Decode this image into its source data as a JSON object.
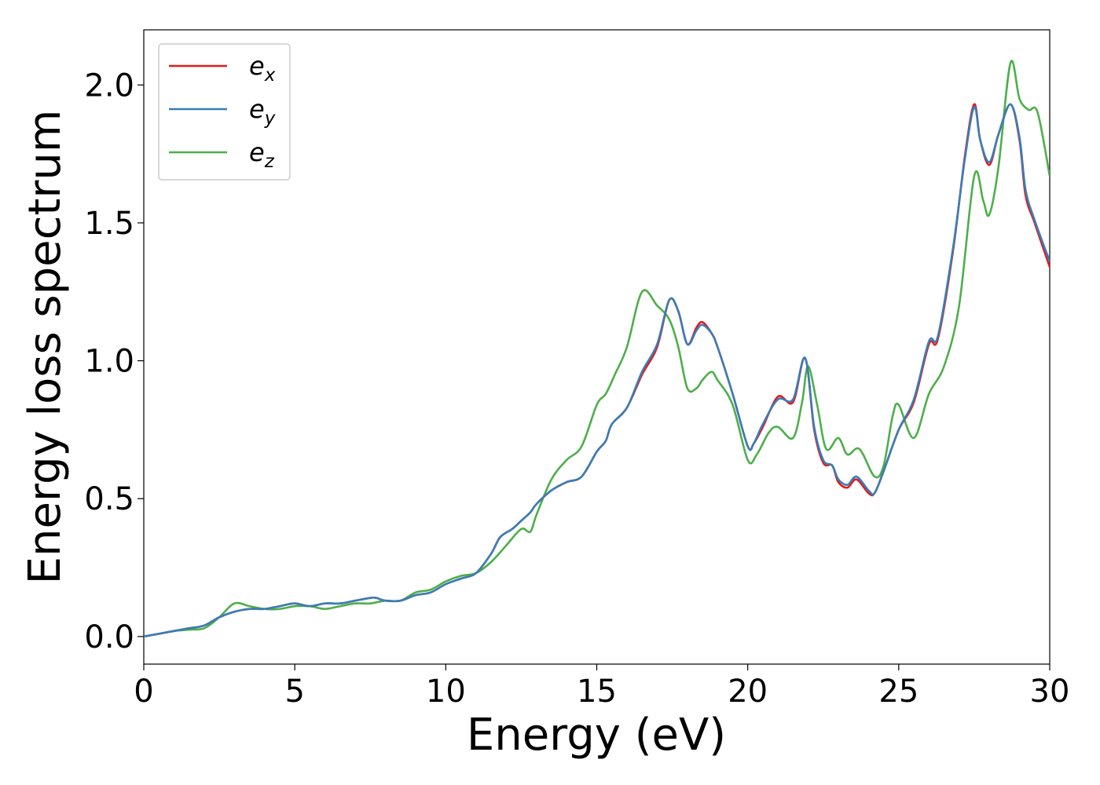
{
  "chart_data": {
    "type": "line",
    "title": "",
    "xlabel": "Energy (eV)",
    "ylabel": "Energy loss spectrum",
    "xlim": [
      0,
      30
    ],
    "ylim": [
      -0.1,
      2.2
    ],
    "xticks": [
      0,
      5,
      10,
      15,
      20,
      25,
      30
    ],
    "xtick_labels": [
      "0",
      "5",
      "10",
      "15",
      "20",
      "25",
      "30"
    ],
    "yticks": [
      0.0,
      0.5,
      1.0,
      1.5,
      2.0
    ],
    "ytick_labels": [
      "0.0",
      "0.5",
      "1.0",
      "1.5",
      "2.0"
    ],
    "grid": false,
    "legend_position": "top-left",
    "series": [
      {
        "name": "e_x",
        "label_base": "e",
        "label_sub": "x",
        "color": "#e41a1c",
        "x": [
          0,
          0.5,
          1,
          1.5,
          2,
          2.5,
          3,
          3.5,
          4,
          4.5,
          5,
          5.5,
          6,
          6.5,
          7,
          7.5,
          7.7,
          8,
          8.5,
          9,
          9.5,
          10,
          10.5,
          11,
          11.5,
          11.8,
          12.2,
          12.5,
          12.8,
          13,
          13.5,
          14,
          14.5,
          15,
          15.3,
          15.5,
          16,
          16.5,
          17,
          17.4,
          17.7,
          18,
          18.3,
          18.5,
          18.8,
          19,
          19.5,
          20,
          20.2,
          20.5,
          21,
          21.5,
          21.9,
          22.2,
          22.5,
          22.8,
          23,
          23.3,
          23.6,
          24,
          24.2,
          24.5,
          25,
          25.5,
          26,
          26.3,
          26.8,
          27.2,
          27.5,
          27.7,
          28,
          28.3,
          28.7,
          29,
          29.2,
          29.5,
          30
        ],
        "y": [
          0,
          0.01,
          0.02,
          0.03,
          0.04,
          0.07,
          0.09,
          0.1,
          0.1,
          0.11,
          0.12,
          0.11,
          0.12,
          0.12,
          0.13,
          0.14,
          0.14,
          0.13,
          0.13,
          0.15,
          0.16,
          0.19,
          0.21,
          0.23,
          0.3,
          0.36,
          0.39,
          0.42,
          0.45,
          0.48,
          0.53,
          0.56,
          0.58,
          0.67,
          0.71,
          0.77,
          0.83,
          0.95,
          1.05,
          1.22,
          1.18,
          1.06,
          1.12,
          1.14,
          1.1,
          1.05,
          0.88,
          0.69,
          0.7,
          0.76,
          0.87,
          0.85,
          1.01,
          0.75,
          0.63,
          0.62,
          0.56,
          0.54,
          0.57,
          0.52,
          0.52,
          0.6,
          0.75,
          0.85,
          1.06,
          1.08,
          1.4,
          1.75,
          1.93,
          1.8,
          1.71,
          1.82,
          1.93,
          1.8,
          1.6,
          1.5,
          1.34
        ]
      },
      {
        "name": "e_y",
        "label_base": "e",
        "label_sub": "y",
        "color": "#377eb8",
        "x": [
          0,
          0.5,
          1,
          1.5,
          2,
          2.5,
          3,
          3.5,
          4,
          4.5,
          5,
          5.5,
          6,
          6.5,
          7,
          7.5,
          7.7,
          8,
          8.5,
          9,
          9.5,
          10,
          10.5,
          11,
          11.5,
          11.8,
          12.2,
          12.5,
          12.8,
          13,
          13.5,
          14,
          14.5,
          15,
          15.3,
          15.5,
          16,
          16.5,
          17,
          17.4,
          17.7,
          18,
          18.3,
          18.5,
          18.8,
          19,
          19.5,
          20,
          20.2,
          20.5,
          21,
          21.5,
          21.9,
          22.2,
          22.5,
          22.8,
          23,
          23.3,
          23.6,
          24,
          24.2,
          24.5,
          25,
          25.5,
          26,
          26.3,
          26.8,
          27.2,
          27.5,
          27.7,
          28,
          28.3,
          28.7,
          29,
          29.2,
          29.5,
          30
        ],
        "y": [
          0,
          0.01,
          0.02,
          0.03,
          0.04,
          0.07,
          0.09,
          0.1,
          0.1,
          0.11,
          0.12,
          0.11,
          0.12,
          0.12,
          0.13,
          0.14,
          0.14,
          0.13,
          0.13,
          0.15,
          0.16,
          0.19,
          0.21,
          0.23,
          0.3,
          0.36,
          0.39,
          0.42,
          0.45,
          0.48,
          0.53,
          0.56,
          0.58,
          0.67,
          0.71,
          0.77,
          0.83,
          0.96,
          1.06,
          1.22,
          1.18,
          1.06,
          1.11,
          1.13,
          1.1,
          1.05,
          0.88,
          0.69,
          0.7,
          0.77,
          0.86,
          0.86,
          1.01,
          0.76,
          0.64,
          0.62,
          0.57,
          0.55,
          0.58,
          0.53,
          0.52,
          0.6,
          0.75,
          0.86,
          1.07,
          1.09,
          1.41,
          1.74,
          1.92,
          1.8,
          1.72,
          1.82,
          1.93,
          1.81,
          1.62,
          1.51,
          1.36
        ]
      },
      {
        "name": "e_z",
        "label_base": "e",
        "label_sub": "z",
        "color": "#4daf4a",
        "x": [
          0,
          0.5,
          1,
          1.5,
          2,
          2.5,
          3,
          3.5,
          4,
          4.5,
          5,
          5.5,
          6,
          6.5,
          7,
          7.5,
          8,
          8.5,
          9,
          9.5,
          10,
          10.5,
          11,
          11.5,
          12,
          12.5,
          12.8,
          13,
          13.5,
          14,
          14.5,
          15,
          15.3,
          15.6,
          16,
          16.5,
          17,
          17.4,
          17.7,
          18,
          18.3,
          18.5,
          18.8,
          19,
          19.5,
          20,
          20.3,
          20.7,
          21,
          21.5,
          21.8,
          22,
          22.3,
          22.6,
          23,
          23.3,
          23.7,
          24.2,
          24.5,
          24.8,
          25,
          25.5,
          26,
          26.5,
          27,
          27.5,
          27.8,
          28,
          28.3,
          28.7,
          29,
          29.3,
          29.6,
          30
        ],
        "y": [
          0,
          0.01,
          0.02,
          0.025,
          0.03,
          0.07,
          0.12,
          0.11,
          0.1,
          0.1,
          0.11,
          0.11,
          0.1,
          0.11,
          0.12,
          0.12,
          0.13,
          0.13,
          0.16,
          0.17,
          0.2,
          0.22,
          0.23,
          0.27,
          0.33,
          0.39,
          0.38,
          0.44,
          0.57,
          0.64,
          0.69,
          0.84,
          0.88,
          0.95,
          1.05,
          1.25,
          1.2,
          1.15,
          1.05,
          0.9,
          0.9,
          0.93,
          0.96,
          0.93,
          0.84,
          0.64,
          0.66,
          0.74,
          0.76,
          0.72,
          0.85,
          0.98,
          0.84,
          0.68,
          0.72,
          0.66,
          0.68,
          0.58,
          0.62,
          0.8,
          0.84,
          0.72,
          0.88,
          0.98,
          1.2,
          1.67,
          1.58,
          1.53,
          1.7,
          2.08,
          1.95,
          1.91,
          1.9,
          1.67
        ]
      }
    ]
  }
}
